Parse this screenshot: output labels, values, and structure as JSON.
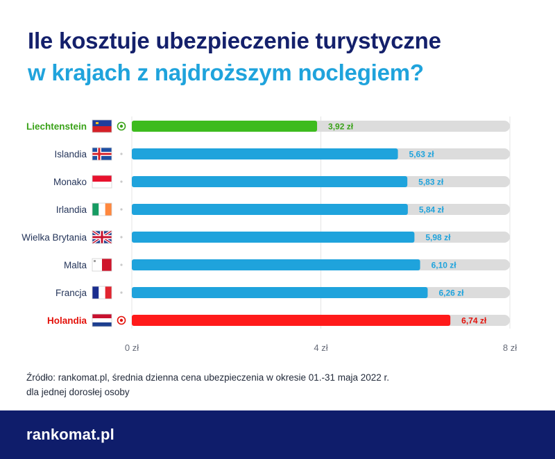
{
  "title": {
    "line1": "Ile kosztuje ubezpieczenie turystyczne",
    "line2": "w krajach z najdroższym noclegiem?"
  },
  "chart_data": {
    "type": "bar",
    "orientation": "horizontal",
    "unit": "zł",
    "categories": [
      "Liechtenstein",
      "Islandia",
      "Monako",
      "Irlandia",
      "Wielka Brytania",
      "Malta",
      "Francja",
      "Holandia"
    ],
    "values": [
      3.92,
      5.63,
      5.83,
      5.84,
      5.98,
      6.1,
      6.26,
      6.74
    ],
    "value_labels": [
      "3,92 zł",
      "5,63 zł",
      "5,83 zł",
      "5,84 zł",
      "5,98 zł",
      "6,10 zł",
      "6,26 zł",
      "6,74 zł"
    ],
    "highlight": {
      "Liechtenstein": "min",
      "Holandia": "max"
    },
    "xlim": [
      0,
      8
    ],
    "ticks": [
      0,
      4,
      8
    ],
    "tick_labels": [
      "0 zł",
      "4 zł",
      "8 zł"
    ],
    "grid": true,
    "colors": {
      "default": "#1fa3dc",
      "min": "#3dbb1e",
      "max": "#ff1a1a",
      "track": "#dcdcdc",
      "min_label": "#3aa219",
      "max_label": "#e3120b",
      "label": "#25355a"
    }
  },
  "source": {
    "line1": "Źródło: rankomat.pl, średnia dzienna cena ubezpieczenia w okresie 01.-31 maja 2022 r.",
    "line2": "dla jednej dorosłej osoby"
  },
  "footer": {
    "logo_text": "rankomat.pl"
  }
}
